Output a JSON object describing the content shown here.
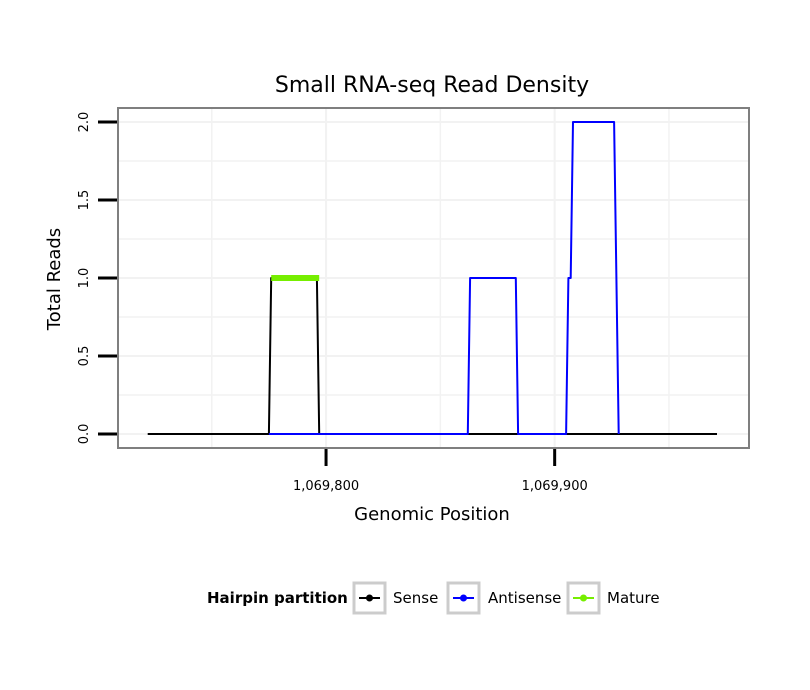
{
  "chart_data": {
    "type": "line",
    "title": "Small RNA-seq Read Density",
    "xlabel": "Genomic Position",
    "ylabel": "Total Reads",
    "xlim": [
      1069709,
      1069985
    ],
    "ylim": [
      -0.09,
      2.09
    ],
    "x_ticks": [
      1069800,
      1069900
    ],
    "x_tick_labels": [
      "1,069,800",
      "1,069,900"
    ],
    "y_ticks": [
      0,
      0.5,
      1,
      1.5,
      2
    ],
    "y_tick_labels": [
      "0.0",
      "0.5",
      "1.0",
      "1.5",
      "2.0"
    ],
    "grid": true,
    "legend": {
      "title": "Hairpin partition",
      "position": "bottom"
    },
    "series": [
      {
        "name": "Sense",
        "color": "#000000",
        "x": [
          1069722,
          1069775,
          1069776,
          1069796,
          1069797,
          1069971
        ],
        "y": [
          0,
          0,
          1,
          1,
          0,
          0
        ]
      },
      {
        "name": "Antisense",
        "color": "#0000ff",
        "x": [
          1069775,
          1069797,
          1069862,
          1069863,
          1069883,
          1069884,
          1069905,
          1069906,
          1069907,
          1069908,
          1069926,
          1069928
        ],
        "y": [
          0,
          0,
          0,
          1,
          1,
          0,
          0,
          1,
          1,
          2,
          2,
          0
        ]
      },
      {
        "name": "Mature",
        "color": "#76ee00",
        "x": [
          1069776,
          1069797
        ],
        "y": [
          1,
          1
        ]
      }
    ]
  }
}
